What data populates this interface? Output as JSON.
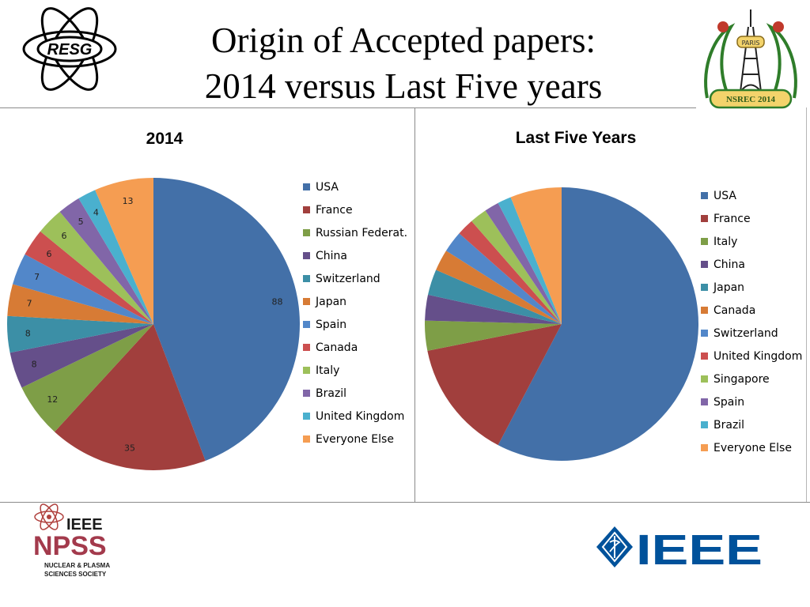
{
  "title": {
    "line1": "Origin of Accepted papers:",
    "line2": "2014 versus Last Five years"
  },
  "logos": {
    "resg": "RESG",
    "nsrec_city": "PARIS",
    "nsrec": "NSREC 2014",
    "npss_ieee": "IEEE",
    "npss": "NPSS",
    "npss_sub1": "NUCLEAR & PLASMA",
    "npss_sub2": "SCIENCES SOCIETY",
    "ieee": "IEEE"
  },
  "colors": {
    "blue": "#4370a8",
    "red": "#a13f3d",
    "green": "#7e9e47",
    "purple": "#654f8a",
    "teal": "#3c8fa6",
    "orange": "#d77b35",
    "lightblue": "#5287c9",
    "lightred": "#cc4f4f",
    "lightgreen": "#9dc05a",
    "lavender": "#8166a8",
    "cyan": "#4ab0ce",
    "peach": "#f59d52"
  },
  "chart_data": [
    {
      "type": "pie",
      "title": "2014",
      "categories": [
        "USA",
        "France",
        "Russian Federat.",
        "China",
        "Switzerland",
        "Japan",
        "Spain",
        "Canada",
        "Italy",
        "Brazil",
        "United Kingdom",
        "Everyone Else"
      ],
      "values": [
        88,
        35,
        12,
        8,
        8,
        7,
        7,
        6,
        6,
        5,
        4,
        13
      ],
      "colors": [
        "#4370a8",
        "#a13f3d",
        "#7e9e47",
        "#654f8a",
        "#3c8fa6",
        "#d77b35",
        "#5287c9",
        "#cc4f4f",
        "#9dc05a",
        "#8166a8",
        "#4ab0ce",
        "#f59d52"
      ],
      "data_labels": true,
      "legend": "right"
    },
    {
      "type": "pie",
      "title": "Last Five Years",
      "categories": [
        "USA",
        "France",
        "Italy",
        "China",
        "Japan",
        "Canada",
        "Switzerland",
        "United Kingdom",
        "Singapore",
        "Spain",
        "Brazil",
        "Everyone Else"
      ],
      "values": [
        57,
        14,
        3.5,
        3,
        3,
        2.5,
        2.5,
        2,
        2,
        1.7,
        1.6,
        6
      ],
      "colors": [
        "#4370a8",
        "#a13f3d",
        "#7e9e47",
        "#654f8a",
        "#3c8fa6",
        "#d77b35",
        "#5287c9",
        "#cc4f4f",
        "#9dc05a",
        "#8166a8",
        "#4ab0ce",
        "#f59d52"
      ],
      "data_labels": false,
      "legend": "right"
    }
  ]
}
